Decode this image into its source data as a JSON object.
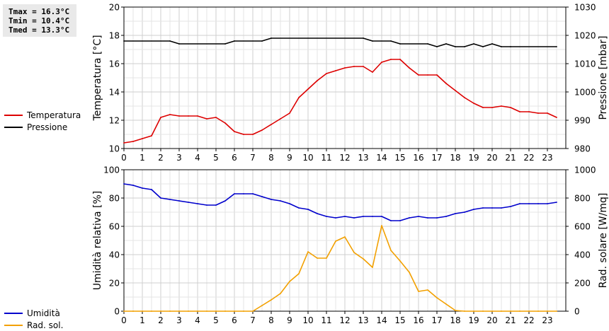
{
  "stats": {
    "tmax": "Tmax = 16.3°C",
    "tmin": "Tmin = 10.4°C",
    "tmed": "Tmed = 13.3°C"
  },
  "legend_top": [
    {
      "label": "Temperatura",
      "color": "#dd0000"
    },
    {
      "label": "Pressione",
      "color": "#000000"
    }
  ],
  "legend_bottom": [
    {
      "label": "Umidità",
      "color": "#0000cc"
    },
    {
      "label": "Rad. sol.",
      "color": "#f2a000"
    }
  ],
  "chart_data": [
    {
      "type": "line",
      "xlim": [
        0,
        24
      ],
      "xticks": [
        "0",
        "1",
        "2",
        "3",
        "4",
        "5",
        "6",
        "7",
        "8",
        "9",
        "10",
        "11",
        "12",
        "13",
        "14",
        "15",
        "16",
        "17",
        "18",
        "19",
        "20",
        "21",
        "22",
        "23"
      ],
      "grid": true,
      "ylabel": "Temperatura [°C]",
      "ylim": [
        10,
        20
      ],
      "yticks": [
        "10",
        "12",
        "14",
        "16",
        "18",
        "20"
      ],
      "y2label": "Pressione [mbar]",
      "y2lim": [
        980,
        1030
      ],
      "y2ticks": [
        "980",
        "990",
        "1000",
        "1010",
        "1020",
        "1030"
      ],
      "series": [
        {
          "name": "Temperatura",
          "axis": "left",
          "color": "#dd0000",
          "x": [
            0,
            0.5,
            1,
            1.5,
            2,
            2.5,
            3,
            3.5,
            4,
            4.5,
            5,
            5.5,
            6,
            6.5,
            7,
            7.5,
            8,
            8.5,
            9,
            9.5,
            10,
            10.5,
            11,
            11.5,
            12,
            12.5,
            13,
            13.5,
            14,
            14.5,
            15,
            15.5,
            16,
            16.5,
            17,
            17.5,
            18,
            18.5,
            19,
            19.5,
            20,
            20.5,
            21,
            21.5,
            22,
            22.5,
            23,
            23.5
          ],
          "y": [
            10.4,
            10.5,
            10.7,
            10.9,
            12.2,
            12.4,
            12.3,
            12.3,
            12.3,
            12.1,
            12.2,
            11.8,
            11.2,
            11.0,
            11.0,
            11.3,
            11.7,
            12.1,
            12.5,
            13.6,
            14.2,
            14.8,
            15.3,
            15.5,
            15.7,
            15.8,
            15.8,
            15.4,
            16.1,
            16.3,
            16.3,
            15.7,
            15.2,
            15.2,
            15.2,
            14.6,
            14.1,
            13.6,
            13.2,
            12.9,
            12.9,
            13.0,
            12.9,
            12.6,
            12.6,
            12.5,
            12.5,
            12.2
          ]
        },
        {
          "name": "Pressione",
          "axis": "right",
          "color": "#000000",
          "x": [
            0,
            2.5,
            3,
            5.5,
            6,
            7.5,
            8,
            13,
            13.5,
            14.5,
            15,
            16.5,
            17,
            17.5,
            18,
            18.5,
            19,
            19.5,
            20,
            20.5,
            21,
            23.5
          ],
          "y": [
            1018,
            1018,
            1017,
            1017,
            1018,
            1018,
            1019,
            1019,
            1018,
            1018,
            1017,
            1017,
            1016,
            1017,
            1016,
            1016,
            1017,
            1016,
            1017,
            1016,
            1016,
            1016
          ]
        }
      ]
    },
    {
      "type": "line",
      "xlim": [
        0,
        24
      ],
      "xticks": [
        "0",
        "1",
        "2",
        "3",
        "4",
        "5",
        "6",
        "7",
        "8",
        "9",
        "10",
        "11",
        "12",
        "13",
        "14",
        "15",
        "16",
        "17",
        "18",
        "19",
        "20",
        "21",
        "22",
        "23"
      ],
      "grid": true,
      "ylabel": "Umidità relativa [%]",
      "ylim": [
        0,
        100
      ],
      "yticks": [
        "0",
        "20",
        "40",
        "60",
        "80",
        "100"
      ],
      "y2label": "Rad. solare [W/mq]",
      "y2lim": [
        0,
        1000
      ],
      "y2ticks": [
        "0",
        "200",
        "400",
        "600",
        "800",
        "1000"
      ],
      "series": [
        {
          "name": "Umidità",
          "axis": "left",
          "color": "#0000cc",
          "x": [
            0,
            0.5,
            1,
            1.5,
            2,
            2.5,
            3,
            3.5,
            4,
            4.5,
            5,
            5.5,
            6,
            6.5,
            7,
            7.5,
            8,
            8.5,
            9,
            9.5,
            10,
            10.5,
            11,
            11.5,
            12,
            12.5,
            13,
            13.5,
            14,
            14.5,
            15,
            15.5,
            16,
            16.5,
            17,
            17.5,
            18,
            18.5,
            19,
            19.5,
            20,
            20.5,
            21,
            21.5,
            22,
            22.5,
            23,
            23.5
          ],
          "y": [
            90,
            89,
            87,
            86,
            80,
            79,
            78,
            77,
            76,
            75,
            75,
            78,
            83,
            83,
            83,
            81,
            79,
            78,
            76,
            73,
            72,
            69,
            67,
            66,
            67,
            66,
            67,
            67,
            67,
            64,
            64,
            66,
            67,
            66,
            66,
            67,
            69,
            70,
            72,
            73,
            73,
            73,
            74,
            76,
            76,
            76,
            76,
            77
          ]
        },
        {
          "name": "Rad. sol.",
          "axis": "right",
          "color": "#f2a000",
          "x": [
            0,
            0.5,
            1,
            1.5,
            2,
            2.5,
            3,
            3.5,
            4,
            4.5,
            5,
            5.5,
            6,
            6.5,
            7,
            7.5,
            8,
            8.5,
            9,
            9.5,
            10,
            10.5,
            11,
            11.5,
            12,
            12.5,
            13,
            13.5,
            14,
            14.5,
            15,
            15.5,
            16,
            16.5,
            17,
            17.5,
            18,
            18.5,
            19,
            19.5,
            20,
            20.5,
            21,
            21.5,
            22,
            22.5,
            23,
            23.5
          ],
          "y": [
            0,
            0,
            0,
            0,
            0,
            0,
            0,
            0,
            0,
            0,
            0,
            0,
            0,
            0,
            0,
            40,
            80,
            125,
            210,
            265,
            420,
            375,
            375,
            495,
            525,
            415,
            370,
            310,
            605,
            430,
            355,
            275,
            140,
            150,
            95,
            50,
            5,
            0,
            0,
            0,
            0,
            0,
            0,
            0,
            0,
            0,
            0,
            0
          ]
        }
      ]
    }
  ]
}
